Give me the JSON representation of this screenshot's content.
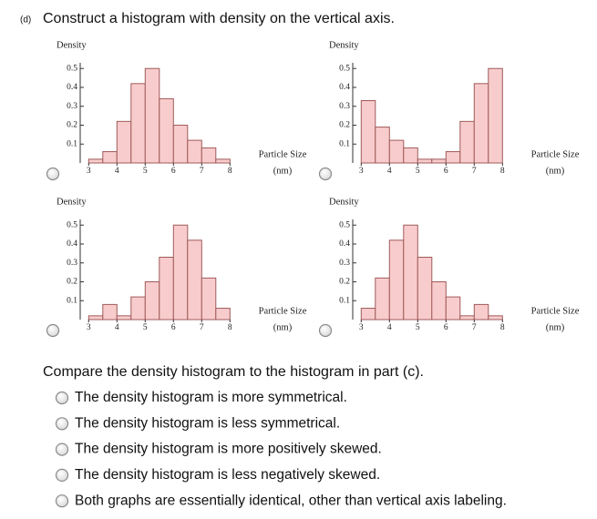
{
  "header": {
    "part": "(d)",
    "title": "Construct a histogram with density on the vertical axis."
  },
  "chart_data": [
    {
      "type": "histogram",
      "ylabel": "Density",
      "xlabel": [
        "Particle Size",
        "(nm)"
      ],
      "bins": [
        3,
        3.5,
        4,
        4.5,
        5,
        5.5,
        6,
        6.5,
        7,
        7.5,
        8
      ],
      "values": [
        0.02,
        0.06,
        0.22,
        0.42,
        0.5,
        0.34,
        0.2,
        0.12,
        0.08,
        0.02
      ],
      "color": "#f8cccc",
      "edgecolor": "#a05a5a",
      "xlim": [
        2.7,
        8.3
      ],
      "ylim": [
        0,
        0.53
      ],
      "xticks": [
        3,
        4,
        5,
        6,
        7,
        8
      ],
      "yticks": [
        0.1,
        0.2,
        0.3,
        0.4,
        0.5
      ]
    },
    {
      "type": "histogram",
      "ylabel": "Density",
      "xlabel": [
        "Particle Size",
        "(nm)"
      ],
      "bins": [
        3,
        3.5,
        4,
        4.5,
        5,
        5.5,
        6,
        6.5,
        7,
        7.5,
        8
      ],
      "values": [
        0.33,
        0.19,
        0.12,
        0.08,
        0.02,
        0.02,
        0.06,
        0.22,
        0.42,
        0.5
      ],
      "color": "#f8cccc",
      "edgecolor": "#a05a5a",
      "xlim": [
        2.7,
        8.3
      ],
      "ylim": [
        0,
        0.53
      ],
      "xticks": [
        3,
        4,
        5,
        6,
        7,
        8
      ],
      "yticks": [
        0.1,
        0.2,
        0.3,
        0.4,
        0.5
      ]
    },
    {
      "type": "histogram",
      "ylabel": "Density",
      "xlabel": [
        "Particle Size",
        "(nm)"
      ],
      "bins": [
        3,
        3.5,
        4,
        4.5,
        5,
        5.5,
        6,
        6.5,
        7,
        7.5,
        8
      ],
      "values": [
        0.02,
        0.08,
        0.02,
        0.12,
        0.2,
        0.33,
        0.5,
        0.42,
        0.22,
        0.06
      ],
      "color": "#f8cccc",
      "edgecolor": "#a05a5a",
      "xlim": [
        2.7,
        8.3
      ],
      "ylim": [
        0,
        0.53
      ],
      "xticks": [
        3,
        4,
        5,
        6,
        7,
        8
      ],
      "yticks": [
        0.1,
        0.2,
        0.3,
        0.4,
        0.5
      ]
    },
    {
      "type": "histogram",
      "ylabel": "Density",
      "xlabel": [
        "Particle Size",
        "(nm)"
      ],
      "bins": [
        3,
        3.5,
        4,
        4.5,
        5,
        5.5,
        6,
        6.5,
        7,
        7.5,
        8
      ],
      "values": [
        0.06,
        0.22,
        0.42,
        0.5,
        0.33,
        0.2,
        0.12,
        0.02,
        0.08,
        0.02
      ],
      "color": "#f8cccc",
      "edgecolor": "#a05a5a",
      "xlim": [
        2.7,
        8.3
      ],
      "ylim": [
        0,
        0.53
      ],
      "xticks": [
        3,
        4,
        5,
        6,
        7,
        8
      ],
      "yticks": [
        0.1,
        0.2,
        0.3,
        0.4,
        0.5
      ]
    }
  ],
  "question": {
    "prompt": "Compare the density histogram to the histogram in part (c).",
    "options": [
      "The density histogram is more symmetrical.",
      "The density histogram is less symmetrical.",
      "The density histogram is more positively skewed.",
      "The density histogram is less negatively skewed.",
      "Both graphs are essentially identical, other than vertical axis labeling."
    ]
  }
}
